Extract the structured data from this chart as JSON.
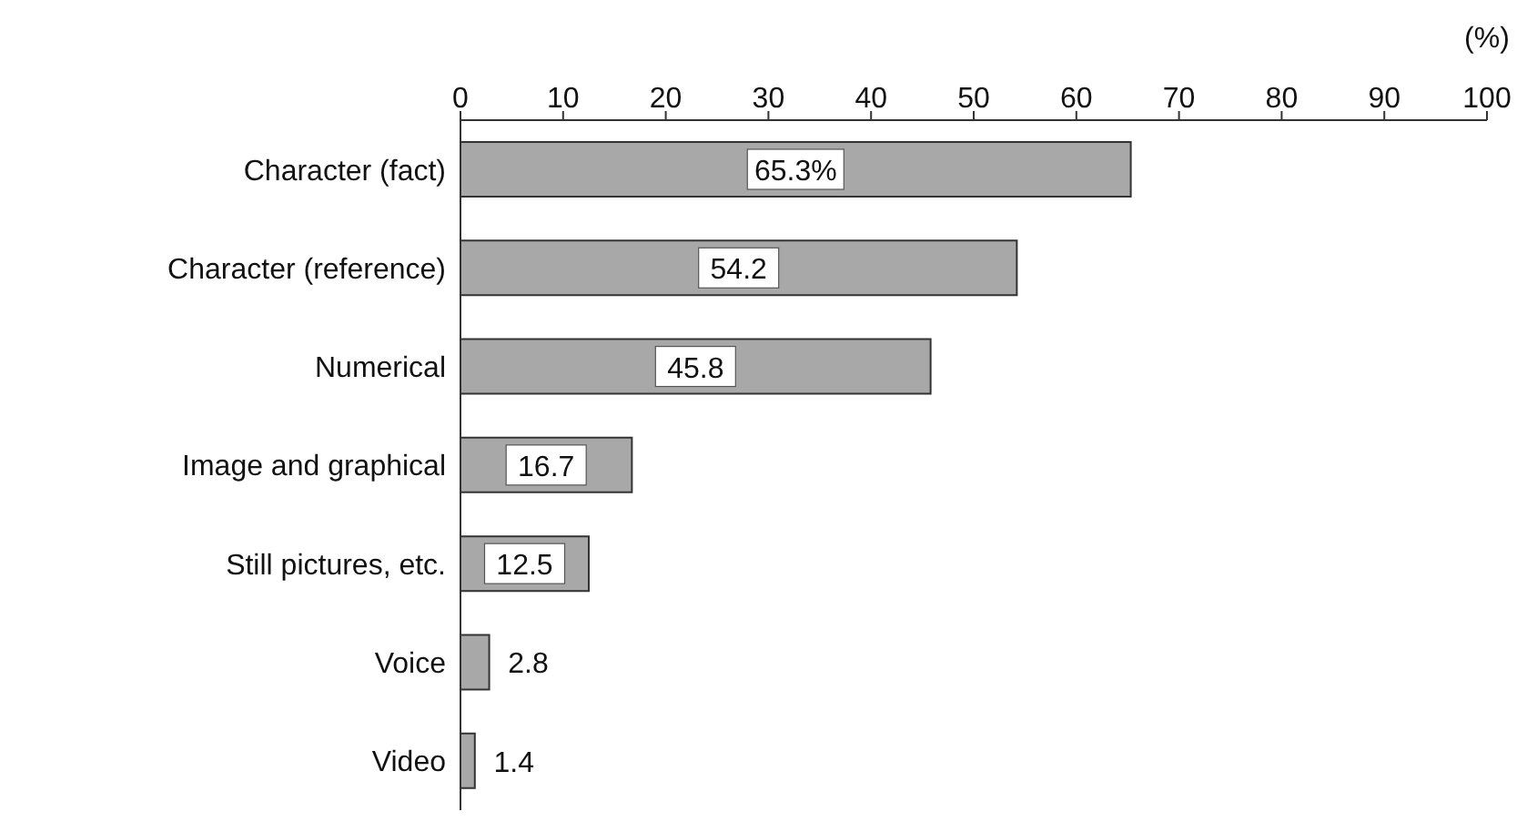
{
  "chart_data": {
    "type": "bar",
    "orientation": "horizontal",
    "xlabel": "(%)",
    "categories": [
      "Character (fact)",
      "Character (reference)",
      "Numerical",
      "Image and graphical",
      "Still pictures, etc.",
      "Voice",
      "Video"
    ],
    "values": [
      65.3,
      54.2,
      45.8,
      16.7,
      12.5,
      2.8,
      1.4
    ],
    "value_labels": [
      "65.3%",
      "54.2",
      "45.8",
      "16.7",
      "12.5",
      "2.8",
      "1.4"
    ],
    "color": "#a8a8a8",
    "xlim": [
      0,
      100
    ],
    "xticks": [
      0,
      10,
      20,
      30,
      40,
      50,
      60,
      70,
      80,
      90,
      100
    ],
    "grid": false,
    "legend": false
  }
}
